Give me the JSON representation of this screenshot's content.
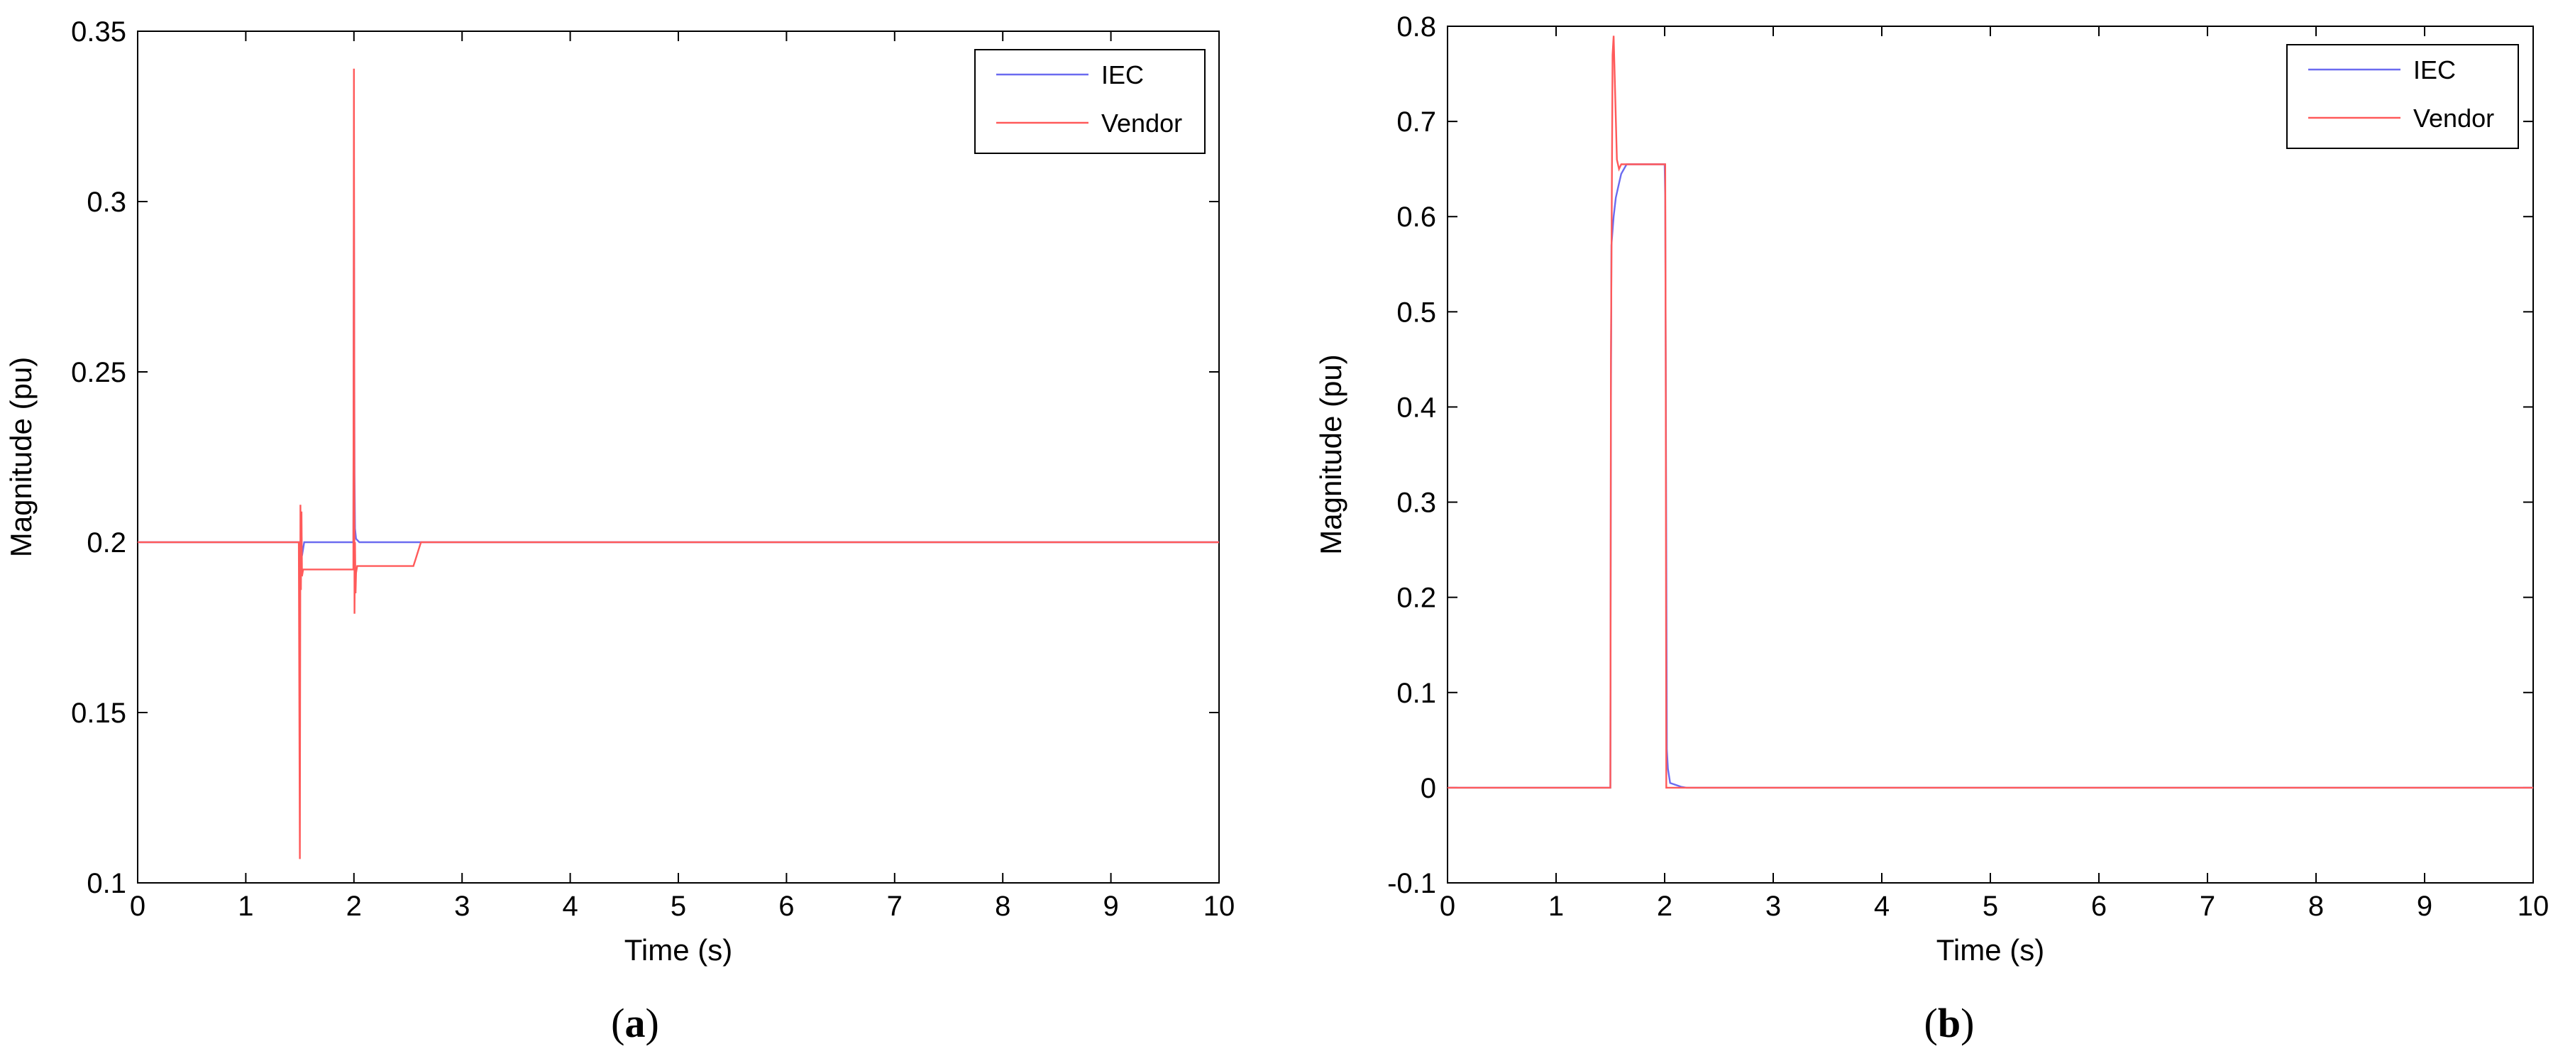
{
  "figure": {
    "captions": [
      "(a)",
      "(b)"
    ],
    "caption_letters": [
      "a",
      "b"
    ]
  },
  "chart_data": [
    {
      "type": "line",
      "panel": "a",
      "caption": "(a)",
      "xlabel": "Time (s)",
      "ylabel": "Magnitude (pu)",
      "xlim": [
        0,
        10
      ],
      "ylim": [
        0.1,
        0.35
      ],
      "xticks": [
        0,
        1,
        2,
        3,
        4,
        5,
        6,
        7,
        8,
        9,
        10
      ],
      "xtick_labels": [
        "0",
        "1",
        "2",
        "3",
        "4",
        "5",
        "6",
        "7",
        "8",
        "9",
        "10"
      ],
      "yticks": [
        0.1,
        0.15,
        0.2,
        0.25,
        0.3,
        0.35
      ],
      "ytick_labels": [
        "0.1",
        "0.15",
        "0.2",
        "0.25",
        "0.3",
        "0.35"
      ],
      "grid": false,
      "legend_position": "top-right",
      "series": [
        {
          "name": "IEC",
          "color": "#6b6bf0",
          "x": [
            0,
            1.5,
            1.505,
            1.51,
            1.52,
            1.54,
            1.6,
            1.98,
            1.995,
            2.0,
            2.005,
            2.01,
            2.02,
            2.05,
            2.1,
            10
          ],
          "y": [
            0.2,
            0.2,
            0.194,
            0.207,
            0.196,
            0.2,
            0.2,
            0.2,
            0.2,
            0.306,
            0.22,
            0.204,
            0.201,
            0.2,
            0.2,
            0.2
          ]
        },
        {
          "name": "Vendor",
          "color": "#ff5a5a",
          "x": [
            0,
            1.49,
            1.5,
            1.505,
            1.51,
            1.515,
            1.52,
            1.53,
            1.55,
            1.6,
            1.99,
            1.995,
            2.0,
            2.005,
            2.01,
            2.015,
            2.02,
            2.03,
            2.05,
            2.1,
            2.55,
            2.57,
            2.6,
            2.62,
            2.65,
            10
          ],
          "y": [
            0.2,
            0.2,
            0.107,
            0.211,
            0.186,
            0.209,
            0.19,
            0.192,
            0.192,
            0.192,
            0.192,
            0.192,
            0.339,
            0.179,
            0.2,
            0.185,
            0.191,
            0.193,
            0.193,
            0.193,
            0.193,
            0.195,
            0.198,
            0.2,
            0.2,
            0.2
          ]
        }
      ]
    },
    {
      "type": "line",
      "panel": "b",
      "caption": "(b)",
      "xlabel": "Time (s)",
      "ylabel": "Magnitude (pu)",
      "xlim": [
        0,
        10
      ],
      "ylim": [
        -0.1,
        0.8
      ],
      "xticks": [
        0,
        1,
        2,
        3,
        4,
        5,
        6,
        7,
        8,
        9,
        10
      ],
      "xtick_labels": [
        "0",
        "1",
        "2",
        "3",
        "4",
        "5",
        "6",
        "7",
        "8",
        "9",
        "10"
      ],
      "yticks": [
        -0.1,
        0,
        0.1,
        0.2,
        0.3,
        0.4,
        0.5,
        0.6,
        0.7,
        0.8
      ],
      "ytick_labels": [
        "-0.1",
        "0",
        "0.1",
        "0.2",
        "0.3",
        "0.4",
        "0.5",
        "0.6",
        "0.7",
        "0.8"
      ],
      "grid": false,
      "legend_position": "top-right",
      "series": [
        {
          "name": "IEC",
          "color": "#6b6bf0",
          "x": [
            0,
            1.5,
            1.505,
            1.51,
            1.53,
            1.55,
            1.58,
            1.6,
            1.65,
            1.7,
            2.0,
            2.005,
            2.01,
            2.02,
            2.03,
            2.05,
            2.1,
            2.15,
            2.2,
            10
          ],
          "y": [
            0,
            0,
            0.405,
            0.57,
            0.6,
            0.62,
            0.635,
            0.645,
            0.655,
            0.655,
            0.655,
            0.62,
            0.46,
            0.04,
            0.02,
            0.005,
            0.003,
            0.001,
            0,
            0
          ]
        },
        {
          "name": "Vendor",
          "color": "#ff5a5a",
          "x": [
            0,
            1.5,
            1.505,
            1.52,
            1.53,
            1.56,
            1.58,
            1.6,
            1.65,
            2.0,
            2.005,
            2.01,
            2.015,
            10
          ],
          "y": [
            0,
            0,
            0.45,
            0.77,
            0.79,
            0.66,
            0.65,
            0.655,
            0.655,
            0.655,
            0.655,
            0.45,
            0,
            0
          ]
        }
      ]
    }
  ]
}
